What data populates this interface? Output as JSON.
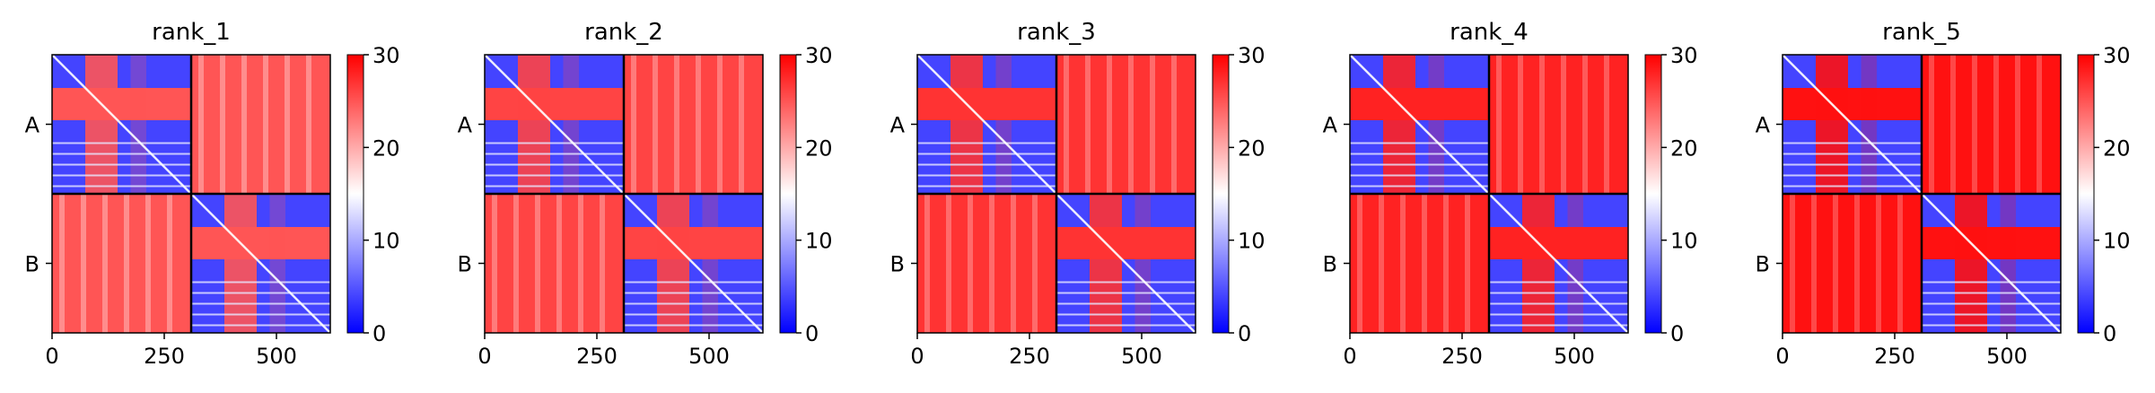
{
  "chart_data": [
    {
      "type": "heatmap",
      "title": "rank_1",
      "chains": [
        "A",
        "B"
      ],
      "chain_length": 310,
      "x_ticks": [
        0,
        250,
        500
      ],
      "xlim": [
        0,
        620
      ],
      "colorbar": {
        "min": 0,
        "max": 30,
        "ticks": [
          0,
          10,
          20,
          30
        ]
      },
      "colormap": [
        "#0000ff",
        "#ffffff",
        "#ff0000"
      ],
      "blocks": {
        "intra_A": 4,
        "intra_B": 4,
        "inter": 25
      },
      "domain_boundaries": [
        90,
        175
      ]
    },
    {
      "type": "heatmap",
      "title": "rank_2",
      "chains": [
        "A",
        "B"
      ],
      "chain_length": 310,
      "x_ticks": [
        0,
        250,
        500
      ],
      "xlim": [
        0,
        620
      ],
      "colorbar": {
        "min": 0,
        "max": 30,
        "ticks": [
          0,
          10,
          20,
          30
        ]
      },
      "colormap": [
        "#0000ff",
        "#ffffff",
        "#ff0000"
      ],
      "blocks": {
        "intra_A": 4,
        "intra_B": 4,
        "inter": 26
      },
      "domain_boundaries": [
        90,
        175
      ]
    },
    {
      "type": "heatmap",
      "title": "rank_3",
      "chains": [
        "A",
        "B"
      ],
      "chain_length": 310,
      "x_ticks": [
        0,
        250,
        500
      ],
      "xlim": [
        0,
        620
      ],
      "colorbar": {
        "min": 0,
        "max": 30,
        "ticks": [
          0,
          10,
          20,
          30
        ]
      },
      "colormap": [
        "#0000ff",
        "#ffffff",
        "#ff0000"
      ],
      "blocks": {
        "intra_A": 4,
        "intra_B": 4,
        "inter": 27
      },
      "domain_boundaries": [
        90,
        175
      ]
    },
    {
      "type": "heatmap",
      "title": "rank_4",
      "chains": [
        "A",
        "B"
      ],
      "chain_length": 310,
      "x_ticks": [
        0,
        250,
        500
      ],
      "xlim": [
        0,
        620
      ],
      "colorbar": {
        "min": 0,
        "max": 30,
        "ticks": [
          0,
          10,
          20,
          30
        ]
      },
      "colormap": [
        "#0000ff",
        "#ffffff",
        "#ff0000"
      ],
      "blocks": {
        "intra_A": 4,
        "intra_B": 4,
        "inter": 28
      },
      "domain_boundaries": [
        90,
        175
      ]
    },
    {
      "type": "heatmap",
      "title": "rank_5",
      "chains": [
        "A",
        "B"
      ],
      "chain_length": 310,
      "x_ticks": [
        0,
        250,
        500
      ],
      "xlim": [
        0,
        620
      ],
      "colorbar": {
        "min": 0,
        "max": 30,
        "ticks": [
          0,
          10,
          20,
          30
        ]
      },
      "colormap": [
        "#0000ff",
        "#ffffff",
        "#ff0000"
      ],
      "blocks": {
        "intra_A": 4,
        "intra_B": 4,
        "inter": 29
      },
      "domain_boundaries": [
        90,
        175
      ]
    }
  ]
}
